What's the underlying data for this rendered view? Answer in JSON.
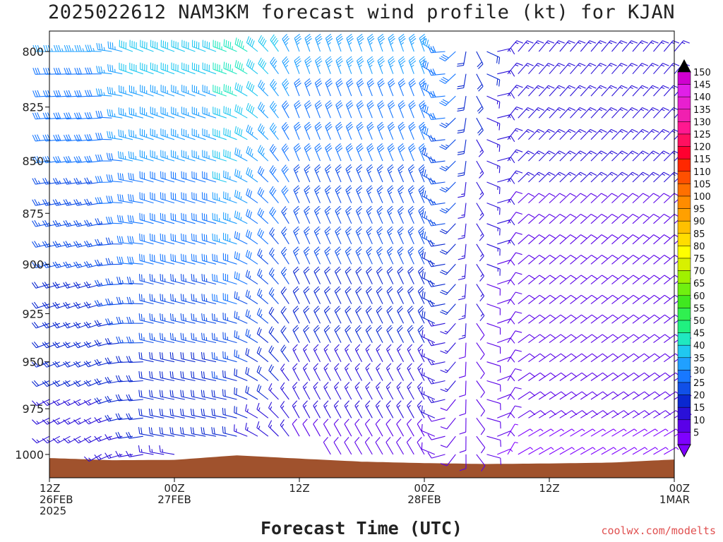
{
  "title": "2025022612 NAM3KM forecast wind profile (kt) for KJAN",
  "xlabel": "Forecast Time (UTC)",
  "credit": "coolwx.com/modelts",
  "chart_data": {
    "type": "wind-barb-profile",
    "title": "2025022612 NAM3KM forecast wind profile (kt) for KJAN",
    "xlabel": "Forecast Time (UTC)",
    "ylabel": "",
    "y_ticks": [
      800,
      825,
      850,
      875,
      900,
      925,
      950,
      975,
      1000
    ],
    "ylim": [
      1013,
      791
    ],
    "y_scale": "log-pressure",
    "x_range_hours": [
      0,
      60
    ],
    "x_ticks": [
      {
        "hour": 0,
        "lines": [
          "12Z",
          "26FEB",
          "2025"
        ]
      },
      {
        "hour": 12,
        "lines": [
          "00Z",
          "27FEB"
        ]
      },
      {
        "hour": 24,
        "lines": [
          "12Z"
        ]
      },
      {
        "hour": 36,
        "lines": [
          "00Z",
          "28FEB"
        ]
      },
      {
        "hour": 48,
        "lines": [
          "12Z"
        ]
      },
      {
        "hour": 60,
        "lines": [
          "00Z",
          "1MAR"
        ]
      }
    ],
    "barb_time_step_hours": 1,
    "barb_levels": [
      790,
      800,
      810,
      820,
      830,
      840,
      850,
      860,
      870,
      880,
      890,
      900,
      910,
      920,
      930,
      940,
      950,
      960,
      970,
      980,
      990,
      1000,
      1010
    ],
    "surface_pressure": [
      {
        "hour": 0,
        "p": 1002.0
      },
      {
        "hour": 6,
        "p": 1003.2
      },
      {
        "hour": 12,
        "p": 1003.0
      },
      {
        "hour": 18,
        "p": 1000.5
      },
      {
        "hour": 24,
        "p": 1002.3
      },
      {
        "hour": 30,
        "p": 1004.0
      },
      {
        "hour": 36,
        "p": 1004.8
      },
      {
        "hour": 42,
        "p": 1005.3
      },
      {
        "hour": 48,
        "p": 1005.0
      },
      {
        "hour": 54,
        "p": 1004.5
      },
      {
        "hour": 60,
        "p": 1002.8
      }
    ],
    "wind_regimes": [
      {
        "hours": [
          0,
          8
        ],
        "direction_deg": 270,
        "speed_kt": 25,
        "note": "west-southwest above 900, southwest lower"
      },
      {
        "hours": [
          8,
          24
        ],
        "direction_deg": 290,
        "speed_kt": 30,
        "note": "west-northwest to northwest"
      },
      {
        "hours": [
          24,
          44
        ],
        "direction_deg": 340,
        "speed_kt": 20,
        "note": "north-northwest, stronger aloft"
      },
      {
        "hours": [
          44,
          60
        ],
        "direction_deg": 40,
        "speed_kt": 12,
        "note": "north to northeast low levels"
      }
    ],
    "colorbar": {
      "values": [
        5,
        10,
        15,
        20,
        25,
        30,
        35,
        40,
        45,
        50,
        55,
        60,
        65,
        70,
        75,
        80,
        85,
        90,
        95,
        100,
        105,
        110,
        115,
        120,
        125,
        130,
        135,
        140,
        145,
        150
      ],
      "colors": [
        "#7f00ff",
        "#5a00e8",
        "#2a10d8",
        "#0a28d0",
        "#1050e8",
        "#1878ff",
        "#20a0ff",
        "#20c8f0",
        "#20e8c0",
        "#20f080",
        "#30f050",
        "#40e820",
        "#70f010",
        "#a0f000",
        "#d8f000",
        "#ffff00",
        "#ffdd00",
        "#ffc000",
        "#ffa000",
        "#ff8c00",
        "#ff7000",
        "#ff5000",
        "#ff2800",
        "#ff0030",
        "#ff1060",
        "#ff1890",
        "#f020b0",
        "#e820d0",
        "#e020e8",
        "#d000d0"
      ]
    }
  }
}
